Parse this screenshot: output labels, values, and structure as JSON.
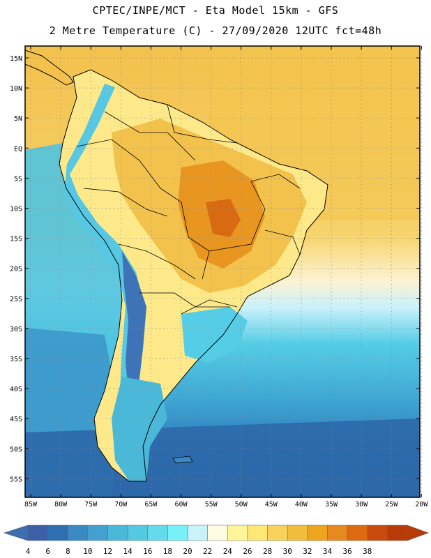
{
  "header": {
    "line1": "CPTEC/INPE/MCT -  Eta Model 15km - GFS",
    "line2": "2 Metre Temperature (C) - 27/09/2020 12UTC fct=48h"
  },
  "map": {
    "lat_labels": [
      "15N",
      "10N",
      "5N",
      "EQ",
      "5S",
      "10S",
      "15S",
      "20S",
      "25S",
      "30S",
      "35S",
      "40S",
      "45S",
      "50S",
      "55S"
    ],
    "lon_labels": [
      "85W",
      "80W",
      "75W",
      "70W",
      "65W",
      "60W",
      "55W",
      "50W",
      "45W",
      "40W",
      "35W",
      "30W",
      "25W",
      "20W"
    ],
    "colors": {
      "ocean_cold": "#2b6aa9",
      "ocean_mid": "#3a9fd0",
      "ocean_cool": "#55cde6",
      "land_warm": "#f2c24c",
      "land_hot": "#e68a1f",
      "land_mild": "#fde98a"
    }
  },
  "colorbar": {
    "labels": [
      "4",
      "6",
      "8",
      "10",
      "12",
      "14",
      "16",
      "18",
      "20",
      "22",
      "24",
      "26",
      "28",
      "30",
      "32",
      "34",
      "36",
      "38"
    ],
    "colors": [
      "#3d5fa8",
      "#2f6fb0",
      "#3a88c4",
      "#44a1cf",
      "#4ab8d9",
      "#53c9e2",
      "#63dbec",
      "#77f0f7",
      "#c9f3fb",
      "#fffbe3",
      "#fef59a",
      "#fde776",
      "#f8d25c",
      "#f1bd3d",
      "#eda520",
      "#e68a1f",
      "#de6a12",
      "#c84a0c",
      "#b83a08"
    ],
    "low_arrow_color": "#3d6fb0",
    "high_arrow_color": "#b83a08"
  }
}
